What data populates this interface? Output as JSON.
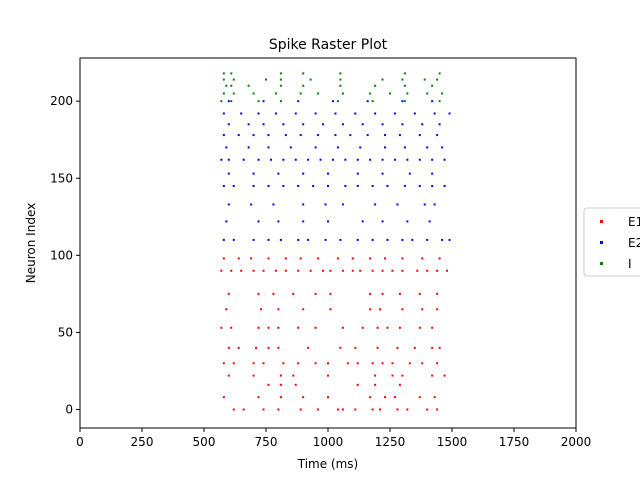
{
  "chart_data": {
    "type": "scatter",
    "title": "Spike Raster Plot",
    "xlabel": "Time (ms)",
    "ylabel": "Neuron Index",
    "xlim": [
      0,
      2000
    ],
    "ylim": [
      -12,
      228
    ],
    "xticks": [
      0,
      250,
      500,
      750,
      1000,
      1250,
      1500,
      1750,
      2000
    ],
    "yticks": [
      0,
      50,
      100,
      150,
      200
    ],
    "grid": false,
    "legend_position": "center-right",
    "series": [
      {
        "name": "E1",
        "color": "#ff0000",
        "points": [
          [
            620,
            0
          ],
          [
            660,
            0
          ],
          [
            740,
            0
          ],
          [
            800,
            0
          ],
          [
            890,
            0
          ],
          [
            960,
            0
          ],
          [
            1040,
            0
          ],
          [
            1060,
            0
          ],
          [
            1110,
            0
          ],
          [
            1180,
            0
          ],
          [
            1210,
            0
          ],
          [
            1280,
            0
          ],
          [
            1320,
            0
          ],
          [
            1400,
            0
          ],
          [
            1440,
            0
          ],
          [
            580,
            8
          ],
          [
            720,
            8
          ],
          [
            810,
            8
          ],
          [
            900,
            8
          ],
          [
            1000,
            8
          ],
          [
            1170,
            8
          ],
          [
            1230,
            8
          ],
          [
            1270,
            8
          ],
          [
            1370,
            8
          ],
          [
            1430,
            8
          ],
          [
            760,
            16
          ],
          [
            810,
            16
          ],
          [
            870,
            16
          ],
          [
            1120,
            16
          ],
          [
            1190,
            16
          ],
          [
            1290,
            16
          ],
          [
            600,
            22
          ],
          [
            700,
            22
          ],
          [
            810,
            22
          ],
          [
            860,
            22
          ],
          [
            1000,
            22
          ],
          [
            1190,
            22
          ],
          [
            1260,
            22
          ],
          [
            1300,
            22
          ],
          [
            1420,
            22
          ],
          [
            1470,
            22
          ],
          [
            580,
            30
          ],
          [
            620,
            30
          ],
          [
            700,
            30
          ],
          [
            740,
            30
          ],
          [
            820,
            30
          ],
          [
            880,
            30
          ],
          [
            950,
            30
          ],
          [
            1000,
            30
          ],
          [
            1080,
            30
          ],
          [
            1120,
            30
          ],
          [
            1180,
            30
          ],
          [
            1220,
            30
          ],
          [
            1260,
            30
          ],
          [
            1330,
            30
          ],
          [
            1380,
            30
          ],
          [
            1440,
            30
          ],
          [
            600,
            40
          ],
          [
            640,
            40
          ],
          [
            710,
            40
          ],
          [
            760,
            40
          ],
          [
            800,
            40
          ],
          [
            920,
            40
          ],
          [
            1050,
            40
          ],
          [
            1110,
            40
          ],
          [
            1200,
            40
          ],
          [
            1280,
            40
          ],
          [
            1350,
            40
          ],
          [
            1420,
            40
          ],
          [
            1450,
            40
          ],
          [
            570,
            53
          ],
          [
            610,
            53
          ],
          [
            720,
            53
          ],
          [
            760,
            53
          ],
          [
            800,
            53
          ],
          [
            880,
            53
          ],
          [
            950,
            53
          ],
          [
            1060,
            53
          ],
          [
            1140,
            53
          ],
          [
            1200,
            53
          ],
          [
            1240,
            53
          ],
          [
            1290,
            53
          ],
          [
            1370,
            53
          ],
          [
            1420,
            53
          ],
          [
            590,
            65
          ],
          [
            730,
            65
          ],
          [
            800,
            65
          ],
          [
            900,
            65
          ],
          [
            1010,
            65
          ],
          [
            1170,
            65
          ],
          [
            1210,
            65
          ],
          [
            1300,
            65
          ],
          [
            1380,
            65
          ],
          [
            1440,
            65
          ],
          [
            600,
            75
          ],
          [
            720,
            75
          ],
          [
            780,
            75
          ],
          [
            860,
            75
          ],
          [
            950,
            75
          ],
          [
            1010,
            75
          ],
          [
            1170,
            75
          ],
          [
            1220,
            75
          ],
          [
            1290,
            75
          ],
          [
            1370,
            75
          ],
          [
            1440,
            75
          ],
          [
            570,
            90
          ],
          [
            610,
            90
          ],
          [
            650,
            90
          ],
          [
            700,
            90
          ],
          [
            740,
            90
          ],
          [
            790,
            90
          ],
          [
            830,
            90
          ],
          [
            880,
            90
          ],
          [
            930,
            90
          ],
          [
            980,
            90
          ],
          [
            1010,
            90
          ],
          [
            1060,
            90
          ],
          [
            1100,
            90
          ],
          [
            1130,
            90
          ],
          [
            1180,
            90
          ],
          [
            1220,
            90
          ],
          [
            1260,
            90
          ],
          [
            1300,
            90
          ],
          [
            1360,
            90
          ],
          [
            1400,
            90
          ],
          [
            1440,
            90
          ],
          [
            1480,
            90
          ],
          [
            580,
            98
          ],
          [
            640,
            98
          ],
          [
            690,
            98
          ],
          [
            760,
            98
          ],
          [
            830,
            98
          ],
          [
            890,
            98
          ],
          [
            960,
            98
          ],
          [
            1040,
            98
          ],
          [
            1100,
            98
          ],
          [
            1170,
            98
          ],
          [
            1230,
            98
          ],
          [
            1300,
            98
          ],
          [
            1380,
            98
          ],
          [
            1450,
            98
          ]
        ]
      },
      {
        "name": "E2",
        "color": "#0000ff",
        "points": [
          [
            580,
            110
          ],
          [
            620,
            110
          ],
          [
            700,
            110
          ],
          [
            760,
            110
          ],
          [
            810,
            110
          ],
          [
            880,
            110
          ],
          [
            920,
            110
          ],
          [
            990,
            110
          ],
          [
            1050,
            110
          ],
          [
            1120,
            110
          ],
          [
            1180,
            110
          ],
          [
            1240,
            110
          ],
          [
            1300,
            110
          ],
          [
            1340,
            110
          ],
          [
            1400,
            110
          ],
          [
            1460,
            110
          ],
          [
            1490,
            110
          ],
          [
            590,
            122
          ],
          [
            720,
            122
          ],
          [
            800,
            122
          ],
          [
            900,
            122
          ],
          [
            1000,
            122
          ],
          [
            1140,
            122
          ],
          [
            1220,
            122
          ],
          [
            1320,
            122
          ],
          [
            1410,
            122
          ],
          [
            600,
            133
          ],
          [
            690,
            133
          ],
          [
            780,
            133
          ],
          [
            900,
            133
          ],
          [
            990,
            133
          ],
          [
            1060,
            133
          ],
          [
            1190,
            133
          ],
          [
            1280,
            133
          ],
          [
            1390,
            133
          ],
          [
            1430,
            133
          ],
          [
            580,
            145
          ],
          [
            620,
            145
          ],
          [
            700,
            145
          ],
          [
            760,
            145
          ],
          [
            820,
            145
          ],
          [
            880,
            145
          ],
          [
            940,
            145
          ],
          [
            1000,
            145
          ],
          [
            1070,
            145
          ],
          [
            1120,
            145
          ],
          [
            1180,
            145
          ],
          [
            1240,
            145
          ],
          [
            1310,
            145
          ],
          [
            1370,
            145
          ],
          [
            1420,
            145
          ],
          [
            1470,
            145
          ],
          [
            600,
            153
          ],
          [
            700,
            153
          ],
          [
            800,
            153
          ],
          [
            900,
            153
          ],
          [
            1000,
            153
          ],
          [
            1120,
            153
          ],
          [
            1220,
            153
          ],
          [
            1330,
            153
          ],
          [
            1420,
            153
          ],
          [
            570,
            162
          ],
          [
            600,
            162
          ],
          [
            660,
            162
          ],
          [
            720,
            162
          ],
          [
            770,
            162
          ],
          [
            820,
            162
          ],
          [
            870,
            162
          ],
          [
            920,
            162
          ],
          [
            970,
            162
          ],
          [
            1020,
            162
          ],
          [
            1070,
            162
          ],
          [
            1120,
            162
          ],
          [
            1170,
            162
          ],
          [
            1220,
            162
          ],
          [
            1270,
            162
          ],
          [
            1320,
            162
          ],
          [
            1370,
            162
          ],
          [
            1420,
            162
          ],
          [
            1470,
            162
          ],
          [
            590,
            170
          ],
          [
            680,
            170
          ],
          [
            760,
            170
          ],
          [
            850,
            170
          ],
          [
            950,
            170
          ],
          [
            1040,
            170
          ],
          [
            1130,
            170
          ],
          [
            1230,
            170
          ],
          [
            1310,
            170
          ],
          [
            1400,
            170
          ],
          [
            1460,
            170
          ],
          [
            580,
            178
          ],
          [
            640,
            178
          ],
          [
            700,
            178
          ],
          [
            760,
            178
          ],
          [
            830,
            178
          ],
          [
            890,
            178
          ],
          [
            960,
            178
          ],
          [
            1030,
            178
          ],
          [
            1090,
            178
          ],
          [
            1160,
            178
          ],
          [
            1230,
            178
          ],
          [
            1290,
            178
          ],
          [
            1370,
            178
          ],
          [
            1440,
            178
          ],
          [
            600,
            185
          ],
          [
            680,
            185
          ],
          [
            740,
            185
          ],
          [
            820,
            185
          ],
          [
            900,
            185
          ],
          [
            980,
            185
          ],
          [
            1060,
            185
          ],
          [
            1140,
            185
          ],
          [
            1220,
            185
          ],
          [
            1300,
            185
          ],
          [
            1380,
            185
          ],
          [
            1450,
            185
          ],
          [
            580,
            192
          ],
          [
            650,
            192
          ],
          [
            720,
            192
          ],
          [
            790,
            192
          ],
          [
            870,
            192
          ],
          [
            950,
            192
          ],
          [
            1030,
            192
          ],
          [
            1110,
            192
          ],
          [
            1190,
            192
          ],
          [
            1270,
            192
          ],
          [
            1350,
            192
          ],
          [
            1430,
            192
          ],
          [
            1490,
            192
          ],
          [
            600,
            200
          ],
          [
            740,
            200
          ],
          [
            880,
            200
          ],
          [
            1020,
            200
          ],
          [
            1160,
            200
          ],
          [
            1300,
            200
          ],
          [
            1420,
            200
          ]
        ]
      },
      {
        "name": "I",
        "color": "#008000",
        "points": [
          [
            570,
            200
          ],
          [
            610,
            200
          ],
          [
            720,
            200
          ],
          [
            810,
            200
          ],
          [
            1040,
            200
          ],
          [
            1180,
            200
          ],
          [
            1310,
            200
          ],
          [
            1450,
            200
          ],
          [
            580,
            205
          ],
          [
            620,
            205
          ],
          [
            700,
            205
          ],
          [
            790,
            205
          ],
          [
            890,
            205
          ],
          [
            960,
            205
          ],
          [
            1060,
            205
          ],
          [
            1170,
            205
          ],
          [
            1250,
            205
          ],
          [
            1320,
            205
          ],
          [
            1400,
            205
          ],
          [
            1460,
            205
          ],
          [
            590,
            210
          ],
          [
            610,
            210
          ],
          [
            680,
            210
          ],
          [
            810,
            210
          ],
          [
            900,
            210
          ],
          [
            1050,
            210
          ],
          [
            1190,
            210
          ],
          [
            1310,
            210
          ],
          [
            1420,
            210
          ],
          [
            580,
            214
          ],
          [
            620,
            214
          ],
          [
            750,
            214
          ],
          [
            810,
            214
          ],
          [
            930,
            214
          ],
          [
            1050,
            214
          ],
          [
            1220,
            214
          ],
          [
            1300,
            214
          ],
          [
            1390,
            214
          ],
          [
            1440,
            214
          ],
          [
            580,
            218
          ],
          [
            610,
            218
          ],
          [
            810,
            218
          ],
          [
            900,
            218
          ],
          [
            1050,
            218
          ],
          [
            1310,
            218
          ],
          [
            1450,
            218
          ]
        ]
      }
    ]
  }
}
